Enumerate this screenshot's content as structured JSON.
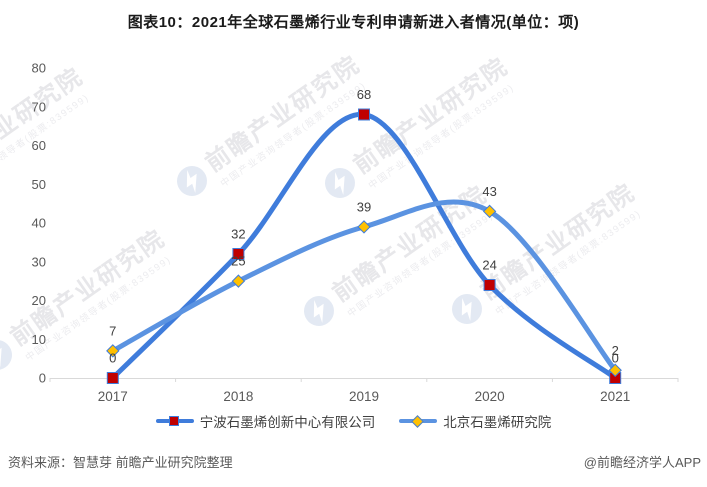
{
  "header": {
    "title": "图表10：2021年全球石墨烯行业专利申请新进入者情况(单位：项)"
  },
  "chart_data": {
    "type": "line",
    "title": "图表10：2021年全球石墨烯行业专利申请新进入者情况(单位：项)",
    "unit": "项",
    "categories": [
      "2017",
      "2018",
      "2019",
      "2020",
      "2021"
    ],
    "series": [
      {
        "name": "宁波石墨烯创新中心有限公司",
        "values": [
          0,
          32,
          68,
          24,
          0
        ],
        "color": "#3F7CDB",
        "marker": "square",
        "marker_color": "#C00000"
      },
      {
        "name": "北京石墨烯研究院",
        "values": [
          7,
          25,
          39,
          43,
          2
        ],
        "color": "#5B93E1",
        "marker": "diamond",
        "marker_color": "#FFC000"
      }
    ],
    "ylim": [
      0,
      80
    ],
    "ytick_step": 10,
    "grid": false,
    "smooth": true,
    "legend_position": "bottom"
  },
  "watermark": {
    "logo": "qianzhan-logo",
    "text": "前瞻产业研究院",
    "subtext": "中国产业咨询领导者(股票:839599)"
  },
  "footer": {
    "source": "资料来源：智慧芽 前瞻产业研究院整理",
    "credit": "@前瞻经济学人APP"
  },
  "colors": {
    "axis": "#D9D9D9",
    "tick_text": "#595959",
    "data_label": "#404040",
    "title_text": "#1A1A1A",
    "footer_text": "#595959",
    "watermark_text": "#E7E7EA",
    "watermark_subtext": "#ECECEF",
    "watermark_logo": "#E3E9F3",
    "marker_stroke": "#3F7CDB"
  }
}
